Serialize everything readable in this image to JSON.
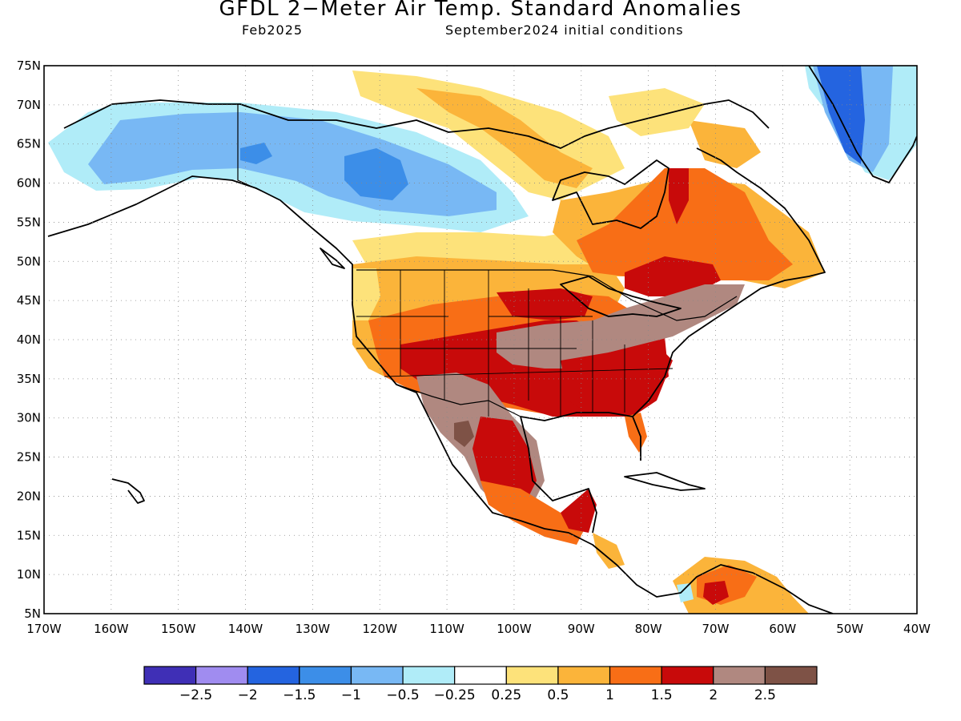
{
  "header": {
    "title": "GFDL 2−Meter Air Temp. Standard Anomalies",
    "subtitle_left": "Feb2025",
    "subtitle_right": "September2024 initial conditions"
  },
  "map": {
    "projection": "equirectangular",
    "lon_range": [
      -170,
      -40
    ],
    "lat_range": [
      5,
      75
    ],
    "lat_labels": [
      "75N",
      "70N",
      "65N",
      "60N",
      "55N",
      "50N",
      "45N",
      "40N",
      "35N",
      "30N",
      "25N",
      "20N",
      "15N",
      "10N",
      "5N"
    ],
    "lon_labels": [
      "170W",
      "160W",
      "150W",
      "140W",
      "130W",
      "120W",
      "110W",
      "100W",
      "90W",
      "80W",
      "70W",
      "60W",
      "50W",
      "40W"
    ]
  },
  "colorbar": {
    "colors": [
      "#3f2fb6",
      "#a08cf0",
      "#2464e0",
      "#3c8ee8",
      "#78b8f4",
      "#b0ecf8",
      "#ffffff",
      "#fde27a",
      "#fbb43a",
      "#f86e16",
      "#c80a0a",
      "#b08880",
      "#7e5246"
    ],
    "labels": [
      "−2.5",
      "−2",
      "−1.5",
      "−1",
      "−0.5",
      "−0.25",
      "0.25",
      "0.5",
      "1",
      "1.5",
      "2",
      "2.5"
    ]
  },
  "anomaly_regions": [
    {
      "name": "alaska-yukon-cool",
      "level": "-0.5"
    },
    {
      "name": "yukon-core-cool",
      "level": "-1"
    },
    {
      "name": "greenland-cool",
      "level": "-1.5"
    },
    {
      "name": "northern-canada-warm",
      "level": "0.5"
    },
    {
      "name": "eastern-canada-warm",
      "level": "1.5"
    },
    {
      "name": "great-plains-warm",
      "level": "2"
    },
    {
      "name": "mid-atlantic-warm",
      "level": "2.5"
    },
    {
      "name": "mexico-warm",
      "level": "2"
    },
    {
      "name": "northern-south-america-warm",
      "level": "1"
    }
  ]
}
